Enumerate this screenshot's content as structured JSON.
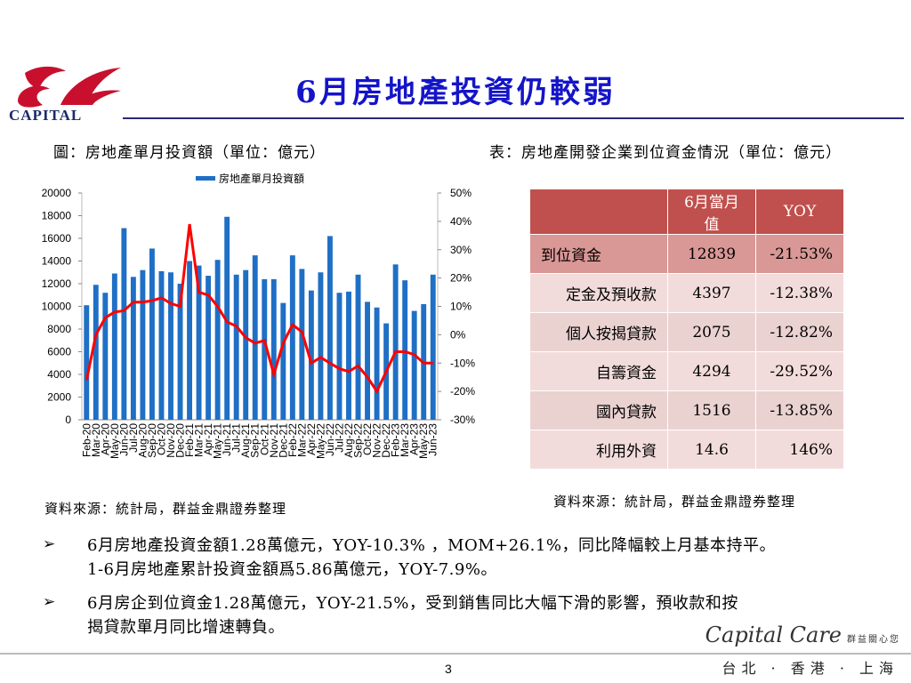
{
  "logo": {
    "text": "CAPITAL"
  },
  "title": "6月房地產投資仍較弱",
  "figure_caption": "圖：房地產單月投資額（單位：億元）",
  "table_caption": "表：房地產開發企業到位資金情況（單位：億元）",
  "chart_data": {
    "type": "bar",
    "legend": "房地產單月投資額",
    "categories": [
      "Feb-20",
      "Mar-20",
      "Apr-20",
      "May-20",
      "Jun-20",
      "Jul-20",
      "Aug-20",
      "Sep-20",
      "Oct-20",
      "Nov-20",
      "Dec-20",
      "Feb-21",
      "Mar-21",
      "Apr-21",
      "May-21",
      "Jun-21",
      "Jul-21",
      "Aug-21",
      "Sep-21",
      "Oct-21",
      "Nov-21",
      "Dec-21",
      "Feb-22",
      "Mar-22",
      "Apr-22",
      "May-22",
      "Jun-22",
      "Jul-22",
      "Aug-22",
      "Sep-22",
      "Oct-22",
      "Nov-22",
      "Dec-22",
      "Feb-23",
      "Mar-23",
      "Apr-23",
      "May-23",
      "Jun-23"
    ],
    "values": [
      10100,
      11900,
      11200,
      12900,
      16900,
      12600,
      13200,
      15100,
      13100,
      13000,
      12000,
      14000,
      13600,
      12700,
      14100,
      17900,
      12800,
      13200,
      14500,
      12400,
      12400,
      10300,
      14500,
      13300,
      11400,
      13000,
      16200,
      11200,
      11300,
      12800,
      10400,
      9900,
      8500,
      13700,
      12300,
      9600,
      10200,
      12800
    ],
    "series": [
      {
        "name": "YOY",
        "axis": "right",
        "values": [
          -16,
          0,
          6,
          8,
          8.5,
          11.5,
          11.5,
          12,
          13,
          11,
          10,
          39,
          15,
          14,
          10,
          4.5,
          3,
          -1,
          -3,
          -2,
          -14,
          -3,
          3.5,
          1,
          -10,
          -8,
          -10,
          -12,
          -13,
          -11,
          -15,
          -20,
          -13,
          -6,
          -6,
          -7,
          -10,
          -10
        ]
      }
    ],
    "ylim": [
      0,
      20000
    ],
    "yticks": [
      "0",
      "2000",
      "4000",
      "6000",
      "8000",
      "10000",
      "12000",
      "14000",
      "16000",
      "18000",
      "20000"
    ],
    "y2lim": [
      -30,
      50
    ],
    "y2ticks": [
      "-30%",
      "-20%",
      "-10%",
      "0%",
      "10%",
      "20%",
      "30%",
      "40%",
      "50%"
    ],
    "bar_color": "#1f6fc5",
    "line_color": "#ff0000"
  },
  "table": {
    "headers": [
      "",
      "6月當月值",
      "YOY"
    ],
    "rows": [
      {
        "label": "到位資金",
        "value": "12839",
        "yoy": "-21.53%"
      },
      {
        "label": "定金及預收款",
        "value": "4397",
        "yoy": "-12.38%"
      },
      {
        "label": "個人按揭貸款",
        "value": "2075",
        "yoy": "-12.82%"
      },
      {
        "label": "自籌資金",
        "value": "4294",
        "yoy": "-29.52%"
      },
      {
        "label": "國內貸款",
        "value": "1516",
        "yoy": "-13.85%"
      },
      {
        "label": "利用外資",
        "value": "14.6",
        "yoy": "146%"
      }
    ],
    "header_color": "#c0504d"
  },
  "source_left": "資料來源：統計局，群益金鼎證券整理",
  "source_right": "資料來源：統計局，群益金鼎證券整理",
  "bullets": [
    {
      "marker": "➢",
      "lines": [
        "6月房地產投資金額1.28萬億元，YOY-10.3% ，MOM+26.1%，同比降幅較上月基本持平。",
        "1-6月房地產累計投資金額爲5.86萬億元，YOY-7.9%。"
      ]
    },
    {
      "marker": "➢",
      "lines": [
        "6月房企到位資金1.28萬億元，YOY-21.5%，受到銷售同比大幅下滑的影響，預收款和按",
        "揭貸款單月同比增速轉負。"
      ]
    }
  ],
  "brand": {
    "script": "Capital Care",
    "cn": "群益關心您"
  },
  "cities": "台北 · 香港 · 上海",
  "page_number": "3"
}
